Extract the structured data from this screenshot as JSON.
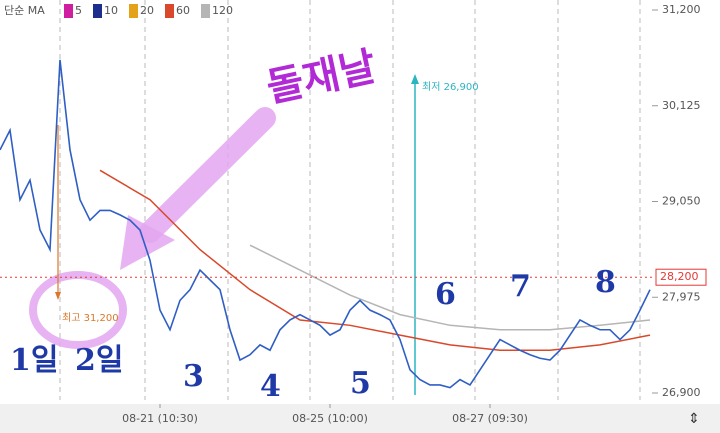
{
  "chart_data": {
    "type": "line",
    "legend_title": "단순 MA",
    "values": [
      29630,
      29850,
      29070,
      29290,
      28730,
      28510,
      30640,
      29630,
      29070,
      28840,
      28950,
      28950,
      28900,
      28840,
      28730,
      28390,
      27830,
      27610,
      27940,
      28060,
      28280,
      28170,
      28060,
      27610,
      27270,
      27330,
      27440,
      27380,
      27610,
      27720,
      27780,
      27720,
      27660,
      27550,
      27610,
      27830,
      27940,
      27830,
      27780,
      27720,
      27500,
      27160,
      27050,
      26990,
      26990,
      26960,
      27050,
      26990,
      27160,
      27330,
      27500,
      27440,
      27380,
      27330,
      27290,
      27270,
      27380,
      27550,
      27720,
      27660,
      27610,
      27610,
      27500,
      27610,
      27830,
      28060
    ],
    "color": "#2f5fc4",
    "series": [
      {
        "name": "5",
        "color": "#d01ea0",
        "values": []
      },
      {
        "name": "10",
        "color": "#1c2f8c",
        "values": []
      },
      {
        "name": "20",
        "color": "#e3a21a",
        "values": []
      },
      {
        "name": "60",
        "color": "#d9482a",
        "values": [
          null,
          null,
          29400,
          29070,
          28510,
          28060,
          27720,
          27660,
          27550,
          27440,
          27380,
          27380,
          27440,
          27550
        ]
      },
      {
        "name": "120",
        "color": "#b5b5b5",
        "values": [
          null,
          null,
          null,
          null,
          null,
          28560,
          28280,
          28000,
          27780,
          27660,
          27610,
          27610,
          27660,
          27720
        ]
      }
    ],
    "xlim": [
      0,
      65
    ],
    "xticks": [
      {
        "value": 16,
        "label": "08-21 (10:30)"
      },
      {
        "value": 33,
        "label": "08-25 (10:00)"
      },
      {
        "value": 49,
        "label": "08-27 (09:30)"
      }
    ],
    "ylim": [
      26900,
      31200
    ],
    "yticks": [
      {
        "value": 26900,
        "label": "26,900"
      },
      {
        "value": 27975,
        "label": "27,975"
      },
      {
        "value": 29050,
        "label": "29,050"
      },
      {
        "value": 30125,
        "label": "30,125"
      },
      {
        "value": 31200,
        "label": "31,200"
      }
    ],
    "last_price": {
      "value": 28200,
      "label": "28,200"
    },
    "annotations": {
      "high": "최고 31,200",
      "low": "최저 26,900",
      "handwritten_title": "돌재날",
      "day_labels": [
        "1일",
        "2일",
        "3",
        "4",
        "5",
        "6",
        "7",
        "8"
      ]
    }
  }
}
